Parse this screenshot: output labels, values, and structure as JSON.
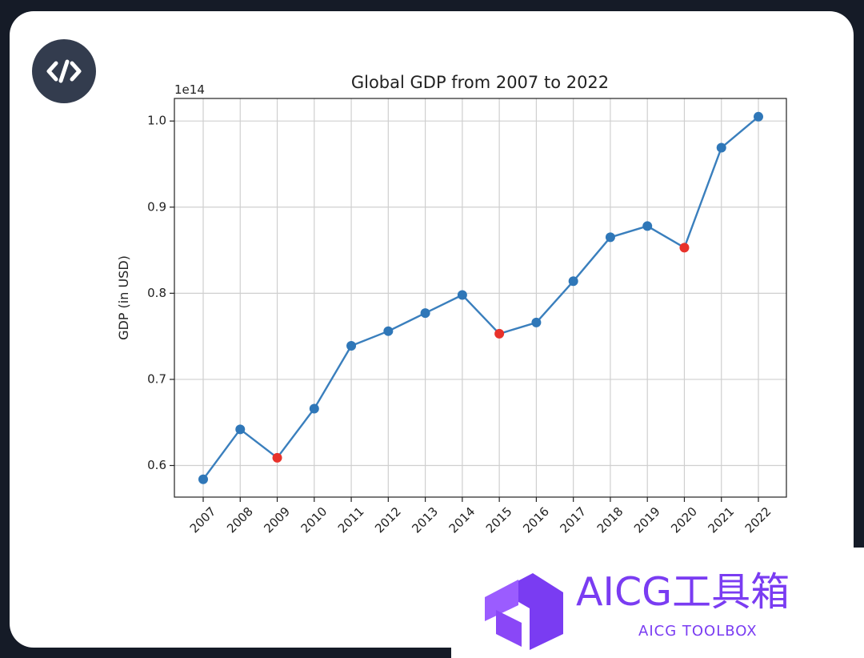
{
  "code_badge": {
    "icon": "code-icon",
    "symbol": "</>"
  },
  "watermark": {
    "logo_icon": "aicg-logo-icon",
    "title": "AICG工具箱",
    "subtitle": "AICG TOOLBOX",
    "color": "#7a3cf2"
  },
  "chart_data": {
    "type": "line",
    "title": "Global GDP from 2007 to 2022",
    "xlabel": "",
    "ylabel": "GDP (in USD)",
    "y_offset_label": "1e14",
    "categories": [
      "2007",
      "2008",
      "2009",
      "2010",
      "2011",
      "2012",
      "2013",
      "2014",
      "2015",
      "2016",
      "2017",
      "2018",
      "2019",
      "2020",
      "2021",
      "2022"
    ],
    "values": [
      0.584,
      0.642,
      0.609,
      0.666,
      0.739,
      0.756,
      0.777,
      0.798,
      0.753,
      0.766,
      0.814,
      0.865,
      0.878,
      0.853,
      0.969,
      1.005
    ],
    "highlighted": [
      "2009",
      "2015",
      "2020"
    ],
    "yticks": [
      "0.6",
      "0.7",
      "0.8",
      "0.9",
      "1.0"
    ],
    "ylim": [
      0.5633,
      1.0262
    ],
    "grid": true,
    "colors": {
      "line": "#3a7fbd",
      "marker": "#2f77b8",
      "highlight": "#e8322b",
      "grid": "#cfcfcf"
    }
  }
}
